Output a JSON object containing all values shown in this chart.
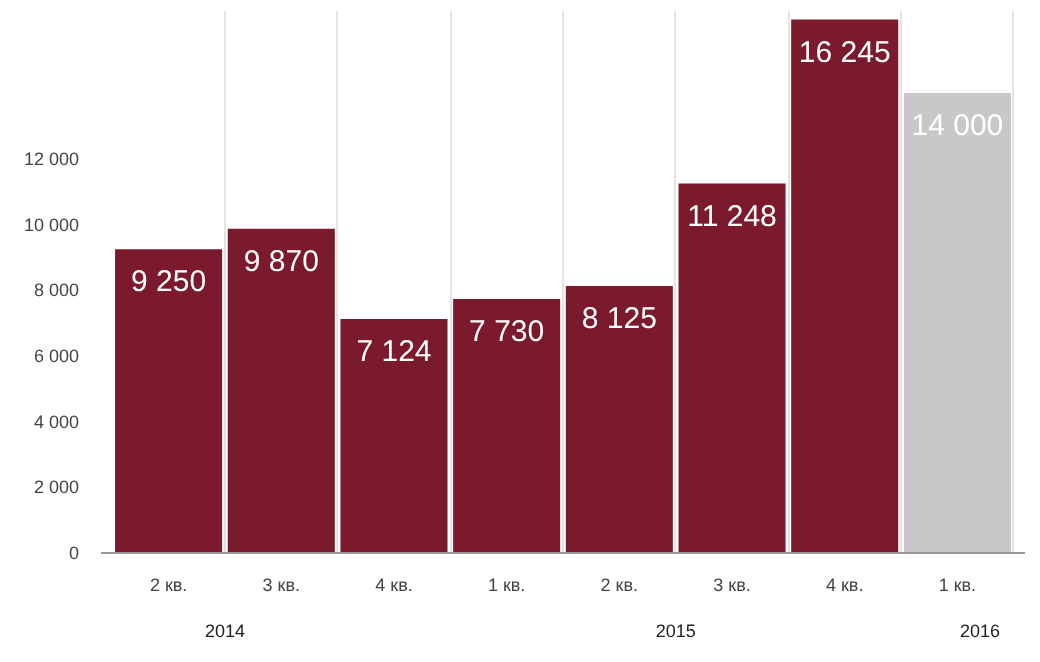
{
  "chart_data": {
    "type": "bar",
    "categories": [
      "2 кв.",
      "3 кв.",
      "4 кв.",
      "1 кв.",
      "2 кв.",
      "3 кв.",
      "4 кв.",
      "1 кв."
    ],
    "values": [
      9250,
      9870,
      7124,
      7730,
      8125,
      11248,
      16245,
      14000
    ],
    "colors": [
      "#7a1a2c",
      "#7a1a2c",
      "#7a1a2c",
      "#7a1a2c",
      "#7a1a2c",
      "#7a1a2c",
      "#7a1a2c",
      "#c8c8c8"
    ],
    "ylim": [
      0,
      16500
    ],
    "yticks": [
      0,
      {
        "value": 2000,
        "label": "2 000"
      },
      {
        "value": 4000,
        "label": "4 000"
      },
      {
        "value": 6000,
        "label": "6 000"
      },
      {
        "value": 8000,
        "label": "8 000"
      },
      {
        "value": 10000,
        "label": "10 000"
      },
      {
        "value": 12000,
        "label": "12 000"
      }
    ],
    "grid": "x",
    "value_labels": [
      "9 250",
      "9 870",
      "7 124",
      "7 730",
      "8 125",
      "11 248",
      "16 245",
      "14 000"
    ],
    "annotations": [
      "2014",
      "2015",
      "2016"
    ]
  }
}
